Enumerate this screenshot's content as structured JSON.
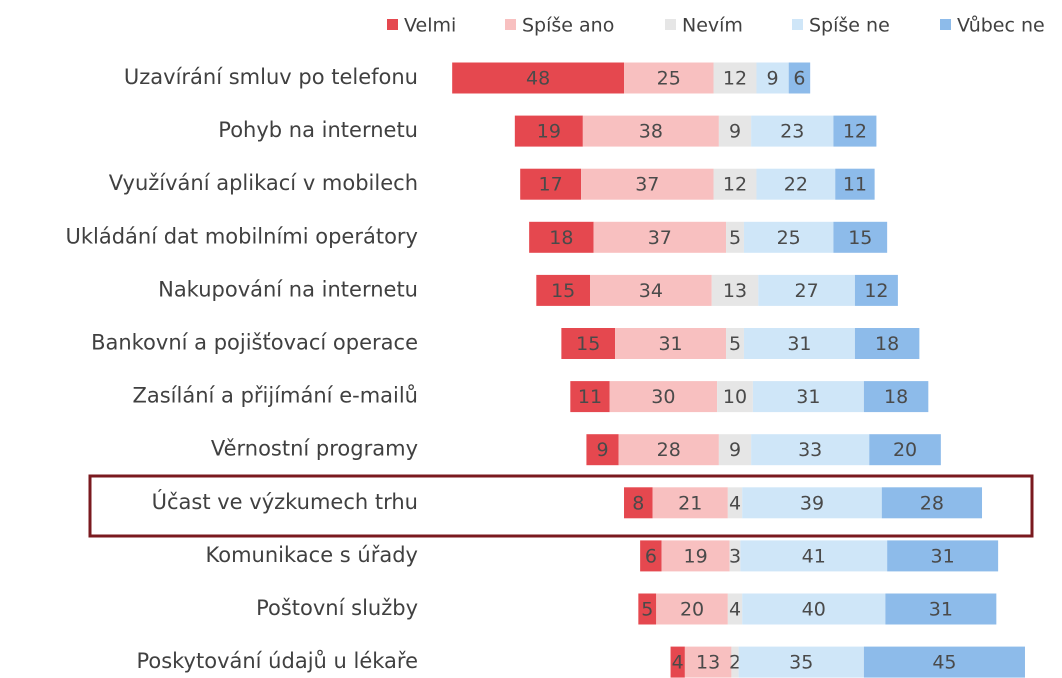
{
  "chart_data": {
    "type": "diverging_bar",
    "categories": [
      "Uzavírání smluv po telefonu",
      "Pohyb na internetu",
      "Využívání aplikací v mobilech",
      "Ukládání dat mobilními operátory",
      "Nakupování na internetu",
      "Bankovní a pojišťovací operace",
      "Zasílání a přijímání e-mailů",
      "Věrnostní programy",
      "Účast ve výzkumech trhu",
      "Komunikace s úřady",
      "Poštovní služby",
      "Poskytování údajů u lékaře"
    ],
    "series": [
      {
        "name": "Velmi",
        "color": "#e5484f",
        "values": [
          48,
          19,
          17,
          18,
          15,
          15,
          11,
          9,
          8,
          6,
          5,
          4
        ]
      },
      {
        "name": "Spíše ano",
        "color": "#f8c0c0",
        "values": [
          25,
          38,
          37,
          37,
          34,
          31,
          30,
          28,
          21,
          19,
          20,
          13
        ]
      },
      {
        "name": "Nevím",
        "color": "#e6e6e6",
        "values": [
          12,
          9,
          12,
          5,
          13,
          5,
          10,
          9,
          4,
          3,
          4,
          2
        ]
      },
      {
        "name": "Spíše ne",
        "color": "#cfe6f8",
        "values": [
          9,
          23,
          22,
          25,
          27,
          31,
          31,
          33,
          39,
          41,
          40,
          35
        ]
      },
      {
        "name": "Vůbec ne",
        "color": "#8dbbea",
        "values": [
          6,
          12,
          11,
          15,
          12,
          18,
          18,
          20,
          28,
          31,
          31,
          45
        ]
      }
    ]
  }
}
